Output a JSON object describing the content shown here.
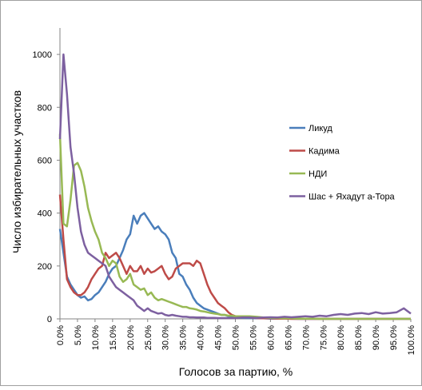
{
  "chart_data": {
    "type": "line",
    "x_label": "Голосов за партию, %",
    "y_label": "Число избирательных участков",
    "x": [
      0,
      1,
      2,
      3,
      4,
      5,
      6,
      7,
      8,
      9,
      10,
      11,
      12,
      13,
      14,
      15,
      16,
      17,
      18,
      19,
      20,
      21,
      22,
      23,
      24,
      25,
      26,
      27,
      28,
      29,
      30,
      31,
      32,
      33,
      34,
      35,
      36,
      37,
      38,
      39,
      40,
      41,
      42,
      43,
      44,
      45,
      46,
      47,
      48,
      49,
      50,
      52,
      54,
      56,
      58,
      60,
      62,
      64,
      66,
      68,
      70,
      72,
      74,
      76,
      78,
      80,
      82,
      84,
      86,
      88,
      90,
      92,
      94,
      96,
      98,
      100
    ],
    "series": [
      {
        "name": "Ликуд",
        "color": "#4a7ebb",
        "values": [
          340,
          250,
          160,
          130,
          110,
          90,
          80,
          85,
          70,
          75,
          90,
          100,
          120,
          140,
          170,
          190,
          200,
          230,
          260,
          300,
          320,
          390,
          360,
          390,
          400,
          380,
          360,
          340,
          350,
          330,
          320,
          300,
          250,
          230,
          170,
          160,
          130,
          110,
          80,
          60,
          50,
          40,
          35,
          30,
          25,
          20,
          15,
          15,
          10,
          8,
          5,
          4,
          3,
          2,
          2,
          1,
          1,
          1,
          1,
          0,
          0,
          0,
          0,
          0,
          0,
          0,
          0,
          0,
          0,
          0,
          0,
          0,
          0,
          0,
          0,
          0
        ]
      },
      {
        "name": "Кадима",
        "color": "#be4b48",
        "values": [
          470,
          300,
          150,
          120,
          100,
          90,
          90,
          100,
          120,
          150,
          170,
          190,
          200,
          250,
          230,
          240,
          250,
          230,
          200,
          170,
          200,
          180,
          180,
          200,
          170,
          190,
          175,
          180,
          190,
          200,
          170,
          150,
          160,
          190,
          200,
          210,
          210,
          210,
          200,
          220,
          210,
          170,
          130,
          100,
          80,
          60,
          50,
          40,
          25,
          15,
          10,
          8,
          5,
          3,
          2,
          2,
          1,
          1,
          0,
          0,
          0,
          0,
          0,
          0,
          0,
          0,
          0,
          0,
          0,
          0,
          0,
          0,
          0,
          0,
          0,
          0
        ]
      },
      {
        "name": "НДИ",
        "color": "#98b954",
        "values": [
          700,
          360,
          350,
          450,
          580,
          590,
          560,
          500,
          420,
          370,
          330,
          300,
          250,
          230,
          200,
          220,
          210,
          160,
          140,
          150,
          170,
          130,
          120,
          110,
          115,
          90,
          100,
          80,
          70,
          75,
          70,
          65,
          60,
          55,
          50,
          45,
          45,
          40,
          38,
          35,
          30,
          28,
          25,
          22,
          20,
          18,
          15,
          15,
          12,
          12,
          10,
          10,
          10,
          8,
          5,
          4,
          3,
          2,
          2,
          1,
          1,
          1,
          0,
          0,
          0,
          0,
          0,
          0,
          0,
          0,
          0,
          0,
          0,
          0,
          0,
          0
        ]
      },
      {
        "name": "Шас + Яхадут а-Тора",
        "color": "#7d60a0",
        "values": [
          680,
          1000,
          850,
          650,
          550,
          420,
          330,
          280,
          250,
          240,
          230,
          220,
          210,
          200,
          160,
          140,
          120,
          110,
          100,
          90,
          80,
          70,
          50,
          40,
          30,
          40,
          30,
          25,
          20,
          22,
          15,
          12,
          15,
          12,
          10,
          8,
          8,
          6,
          6,
          5,
          5,
          5,
          4,
          4,
          4,
          3,
          3,
          3,
          3,
          3,
          3,
          5,
          5,
          4,
          5,
          6,
          5,
          8,
          6,
          8,
          10,
          8,
          12,
          10,
          15,
          18,
          15,
          20,
          22,
          18,
          25,
          20,
          22,
          25,
          40,
          20
        ]
      }
    ],
    "xlim": [
      0,
      100
    ],
    "xticks": [
      {
        "value": 0,
        "label": "0.0%"
      },
      {
        "value": 5,
        "label": "5.0%"
      },
      {
        "value": 10,
        "label": "10.0%"
      },
      {
        "value": 15,
        "label": "15.0%"
      },
      {
        "value": 20,
        "label": "20.0%"
      },
      {
        "value": 25,
        "label": "25.0%"
      },
      {
        "value": 30,
        "label": "30.0%"
      },
      {
        "value": 35,
        "label": "35.0%"
      },
      {
        "value": 40,
        "label": "40.0%"
      },
      {
        "value": 45,
        "label": "45.0%"
      },
      {
        "value": 50,
        "label": "50.0%"
      },
      {
        "value": 55,
        "label": "55.0%"
      },
      {
        "value": 60,
        "label": "60.0%"
      },
      {
        "value": 65,
        "label": "65.0%"
      },
      {
        "value": 70,
        "label": "70.0%"
      },
      {
        "value": 75,
        "label": "75.0%"
      },
      {
        "value": 80,
        "label": "80.0%"
      },
      {
        "value": 85,
        "label": "85.0%"
      },
      {
        "value": 90,
        "label": "90.0%"
      },
      {
        "value": 95,
        "label": "95.0%"
      },
      {
        "value": 100,
        "label": "100.0%"
      }
    ],
    "ylim": [
      0,
      1100
    ],
    "yticks": [
      0,
      200,
      400,
      600,
      800,
      1000
    ],
    "grid": false,
    "legend": "right"
  }
}
